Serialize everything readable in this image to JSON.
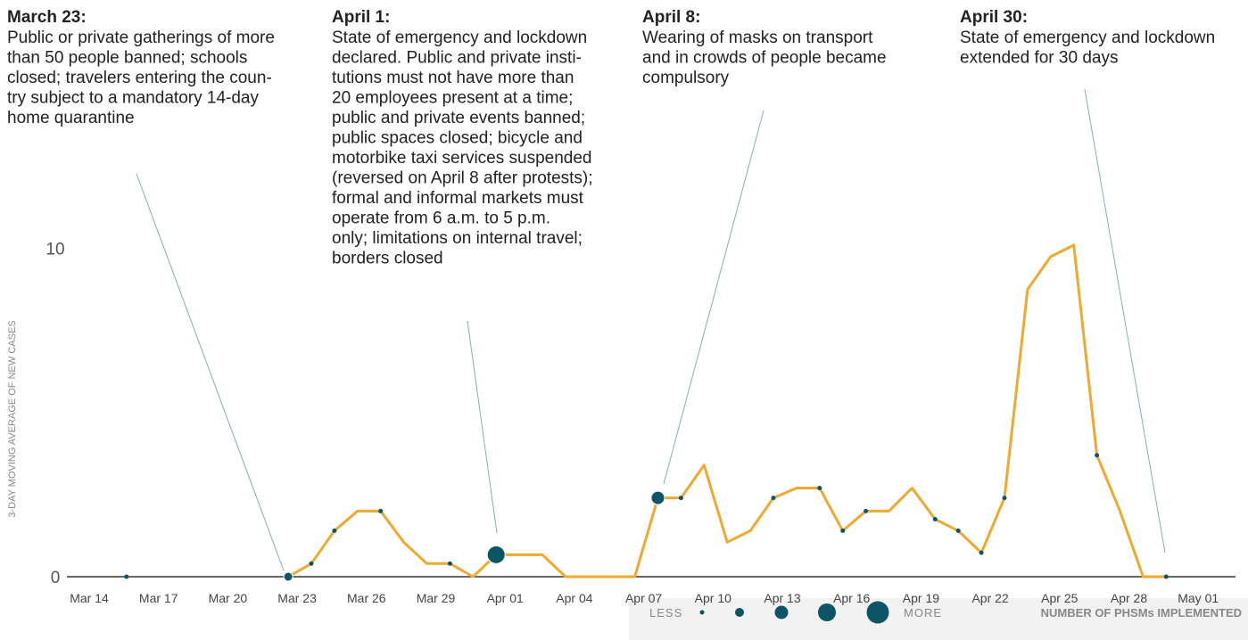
{
  "chart_data": {
    "type": "line",
    "y_label": "3-DAY MOVING AVERAGE OF NEW CASES",
    "x": [
      "Mar 14",
      "Mar 15",
      "Mar 16",
      "Mar 17",
      "Mar 18",
      "Mar 19",
      "Mar 20",
      "Mar 21",
      "Mar 22",
      "Mar 23",
      "Mar 24",
      "Mar 25",
      "Mar 26",
      "Mar 27",
      "Mar 28",
      "Mar 29",
      "Mar 30",
      "Mar 31",
      "Apr 01",
      "Apr 02",
      "Apr 03",
      "Apr 04",
      "Apr 05",
      "Apr 06",
      "Apr 07",
      "Apr 08",
      "Apr 09",
      "Apr 10",
      "Apr 11",
      "Apr 12",
      "Apr 13",
      "Apr 14",
      "Apr 15",
      "Apr 16",
      "Apr 17",
      "Apr 18",
      "Apr 19",
      "Apr 20",
      "Apr 21",
      "Apr 22",
      "Apr 23",
      "Apr 24",
      "Apr 25",
      "Apr 26",
      "Apr 27",
      "Apr 28",
      "Apr 29",
      "Apr 30",
      "May 01"
    ],
    "series": [
      {
        "color": "#f0a92f",
        "values": [
          null,
          null,
          0,
          null,
          null,
          null,
          null,
          null,
          null,
          0,
          0.4,
          1.4,
          2.0,
          2.0,
          1.05,
          0.4,
          0.4,
          0,
          0.67,
          0.67,
          0.67,
          0,
          0,
          0,
          0,
          2.4,
          2.4,
          3.4,
          1.05,
          1.4,
          2.4,
          2.7,
          2.7,
          1.4,
          2.0,
          2.0,
          2.7,
          1.75,
          1.4,
          0.73,
          2.4,
          8.75,
          9.75,
          10.1,
          3.7,
          2.0,
          0,
          0,
          null
        ],
        "phsms": [
          null,
          null,
          1,
          null,
          null,
          null,
          null,
          null,
          null,
          2,
          1,
          1,
          null,
          1,
          null,
          null,
          1,
          null,
          4,
          null,
          null,
          null,
          null,
          null,
          null,
          3,
          1,
          null,
          null,
          null,
          1,
          null,
          1,
          1,
          1,
          null,
          null,
          1,
          1,
          1,
          1,
          null,
          null,
          null,
          1,
          null,
          null,
          1,
          null
        ],
        "dot_color": "#0b5567"
      }
    ],
    "xticks": [
      "Mar 14",
      "Mar 17",
      "Mar 20",
      "Mar 23",
      "Mar 26",
      "Mar 29",
      "Apr 01",
      "Apr 04",
      "Apr 07",
      "Apr 10",
      "Apr 13",
      "Apr 16",
      "Apr 19",
      "Apr 22",
      "Apr 25",
      "Apr 28",
      "May 01"
    ],
    "ylim": [
      0,
      12
    ],
    "yticks": [
      0,
      10
    ],
    "annotations": [
      {
        "title": "March 23:",
        "date": "Mar 23",
        "lines": [
          "Public or private gatherings of more",
          "than 50 people banned; schools",
          "closed; travelers entering the coun-",
          "try subject to a mandatory 14-day",
          "home quarantine"
        ]
      },
      {
        "title": "April 1:",
        "date": "Apr 01",
        "lines": [
          "State of emergency and lockdown",
          "declared. Public and private insti-",
          "tutions must not have more than",
          "20 employees present at a time;",
          "public and private events banned;",
          "public spaces closed; bicycle and",
          "motorbike taxi services suspended",
          "(reversed on April 8 after protests);",
          "formal and informal markets must",
          "operate from 6 a.m. to 5 p.m.",
          "only; limitations on internal travel;",
          "borders closed"
        ]
      },
      {
        "title": "April 8:",
        "date": "Apr 08",
        "lines": [
          "Wearing of masks on transport",
          "and in crowds of people became",
          "compulsory"
        ]
      },
      {
        "title": "April 30:",
        "date": "Apr 30",
        "lines": [
          "State of emergency and lockdown",
          "extended for 30 days"
        ]
      }
    ],
    "size_legend": {
      "less": "LESS",
      "more": "MORE",
      "title": "NUMBER OF PHSMs IMPLEMENTED",
      "levels": [
        1,
        2,
        3,
        4,
        5
      ]
    }
  }
}
